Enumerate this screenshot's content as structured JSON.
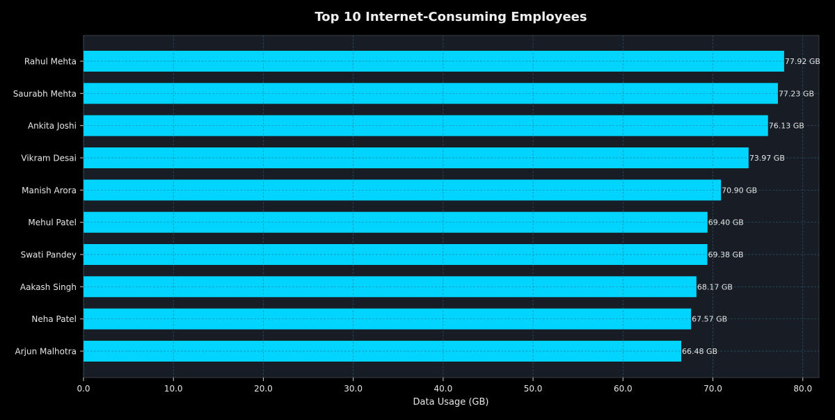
{
  "chart_data": {
    "type": "bar",
    "orientation": "horizontal",
    "title": "Top 10 Internet-Consuming Employees",
    "xlabel": "Data Usage (GB)",
    "ylabel": "",
    "xlim": [
      0,
      81.8
    ],
    "xticks": [
      "0.0",
      "10.0",
      "20.0",
      "30.0",
      "40.0",
      "50.0",
      "60.0",
      "70.0",
      "80.0"
    ],
    "grid": true,
    "categories": [
      "Rahul Mehta",
      "Saurabh Mehta",
      "Ankita Joshi",
      "Vikram Desai",
      "Manish Arora",
      "Mehul Patel",
      "Swati Pandey",
      "Aakash Singh",
      "Neha Patel",
      "Arjun Malhotra"
    ],
    "values": [
      77.92,
      77.23,
      76.13,
      73.97,
      70.9,
      69.4,
      69.38,
      68.17,
      67.57,
      66.48
    ],
    "data_labels": [
      "77.92 GB",
      "77.23 GB",
      "76.13 GB",
      "73.97 GB",
      "70.90 GB",
      "69.40 GB",
      "69.38 GB",
      "68.17 GB",
      "67.57 GB",
      "66.48 GB"
    ],
    "colors": {
      "bar": "#00d4ff",
      "plot_bg": "#181c24",
      "background": "#000000",
      "text": "#e6e6e6",
      "grid": "#2e6f85"
    }
  }
}
